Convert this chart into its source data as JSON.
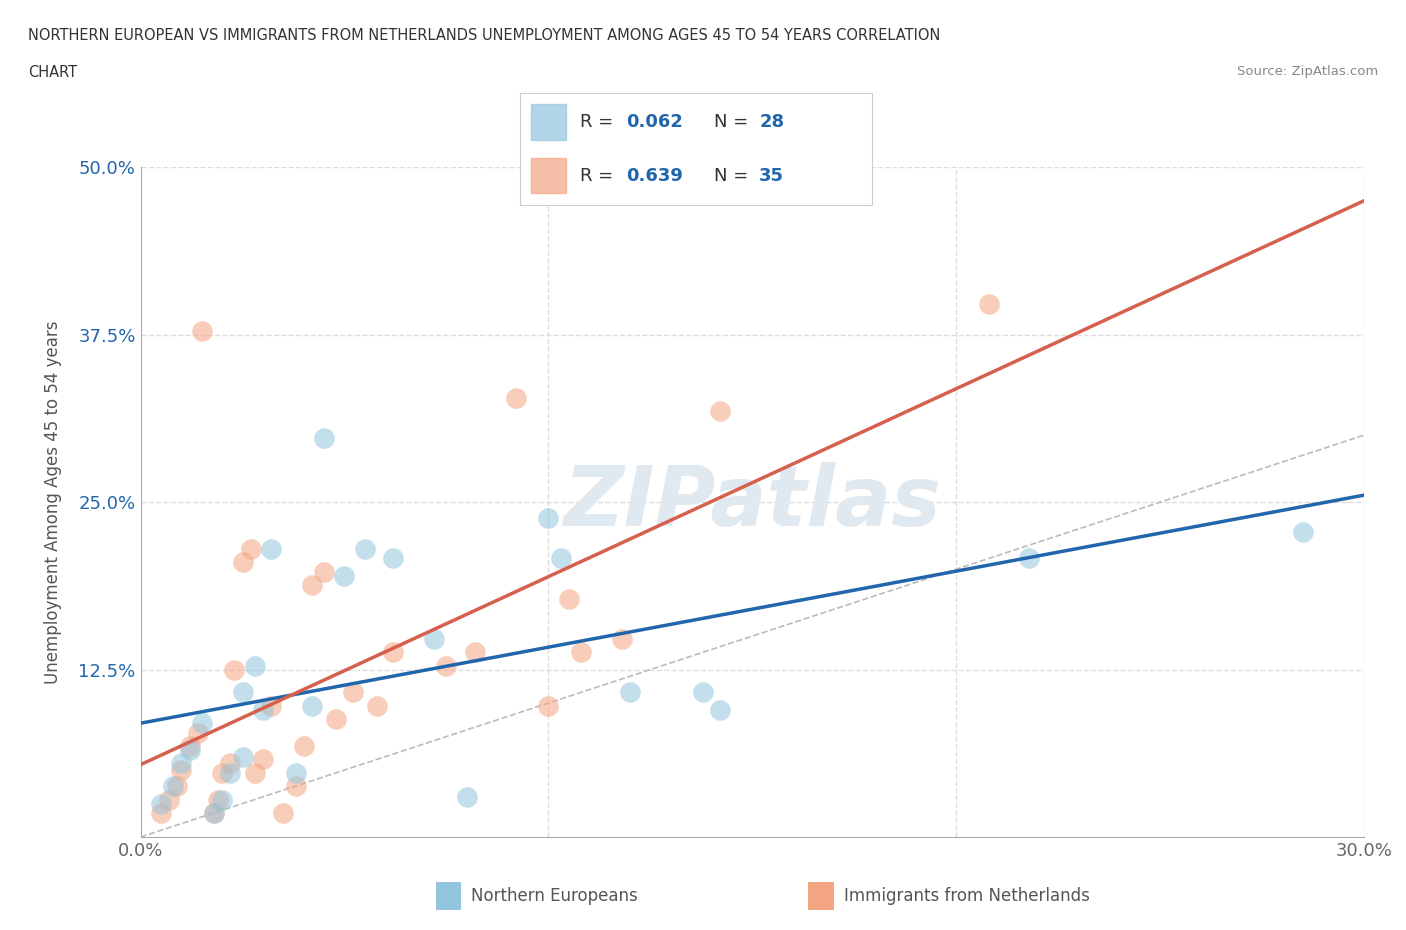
{
  "title_line1": "NORTHERN EUROPEAN VS IMMIGRANTS FROM NETHERLANDS UNEMPLOYMENT AMONG AGES 45 TO 54 YEARS CORRELATION",
  "title_line2": "CHART",
  "source": "Source: ZipAtlas.com",
  "ylabel": "Unemployment Among Ages 45 to 54 years",
  "xlim": [
    0.0,
    0.3
  ],
  "ylim": [
    0.0,
    0.5
  ],
  "xtick_positions": [
    0.0,
    0.1,
    0.2,
    0.3
  ],
  "xticklabels": [
    "0.0%",
    "",
    "",
    "30.0%"
  ],
  "ytick_positions": [
    0.0,
    0.125,
    0.25,
    0.375,
    0.5
  ],
  "yticklabels": [
    "",
    "12.5%",
    "25.0%",
    "37.5%",
    "50.0%"
  ],
  "blue_R": "0.062",
  "blue_N": "28",
  "pink_R": "0.639",
  "pink_N": "35",
  "blue_scatter_color": "#92c5de",
  "pink_scatter_color": "#f4a582",
  "blue_line_color": "#2166ac",
  "pink_line_color": "#d6604d",
  "diagonal_color": "#bbbbbb",
  "legend_R_N_color": "#2166ac",
  "watermark_color": "#e0e8f0",
  "grid_color": "#dddddd",
  "background_color": "#ffffff",
  "bottom_legend_blue_color": "#92c5de",
  "bottom_legend_pink_color": "#f4a582",
  "blue_scatter_x": [
    0.005,
    0.008,
    0.01,
    0.012,
    0.015,
    0.018,
    0.02,
    0.022,
    0.025,
    0.025,
    0.028,
    0.03,
    0.032,
    0.038,
    0.042,
    0.045,
    0.05,
    0.055,
    0.062,
    0.072,
    0.08,
    0.1,
    0.103,
    0.12,
    0.138,
    0.142,
    0.218,
    0.285
  ],
  "blue_scatter_y": [
    0.025,
    0.038,
    0.055,
    0.065,
    0.085,
    0.018,
    0.028,
    0.048,
    0.06,
    0.108,
    0.128,
    0.095,
    0.215,
    0.048,
    0.098,
    0.298,
    0.195,
    0.215,
    0.208,
    0.148,
    0.03,
    0.238,
    0.208,
    0.108,
    0.108,
    0.095,
    0.208,
    0.228
  ],
  "pink_scatter_x": [
    0.005,
    0.007,
    0.009,
    0.01,
    0.012,
    0.014,
    0.015,
    0.018,
    0.019,
    0.02,
    0.022,
    0.023,
    0.025,
    0.027,
    0.028,
    0.03,
    0.032,
    0.035,
    0.038,
    0.04,
    0.042,
    0.045,
    0.048,
    0.052,
    0.058,
    0.062,
    0.075,
    0.082,
    0.092,
    0.1,
    0.105,
    0.108,
    0.118,
    0.142,
    0.208
  ],
  "pink_scatter_y": [
    0.018,
    0.028,
    0.038,
    0.05,
    0.068,
    0.078,
    0.378,
    0.018,
    0.028,
    0.048,
    0.055,
    0.125,
    0.205,
    0.215,
    0.048,
    0.058,
    0.098,
    0.018,
    0.038,
    0.068,
    0.188,
    0.198,
    0.088,
    0.108,
    0.098,
    0.138,
    0.128,
    0.138,
    0.328,
    0.098,
    0.178,
    0.138,
    0.148,
    0.318,
    0.398
  ]
}
